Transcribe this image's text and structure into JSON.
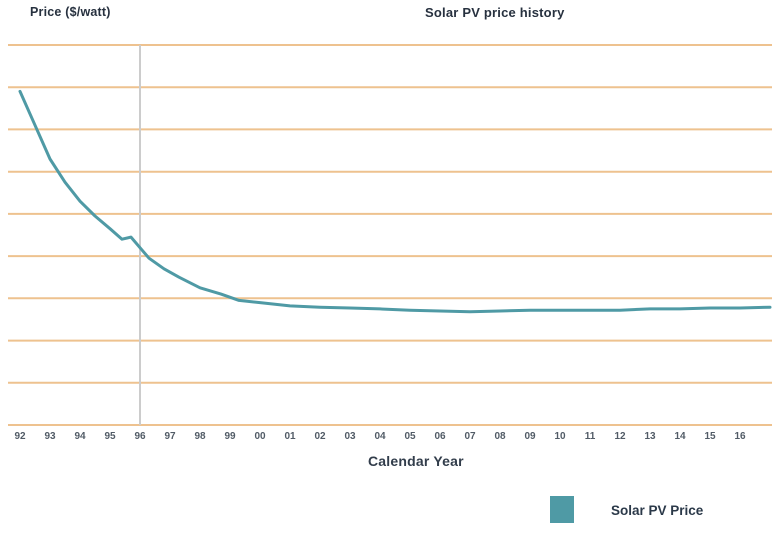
{
  "header": {
    "y_axis_title": "Price ($/watt)",
    "title": "Solar PV price history"
  },
  "x_axis": {
    "label": "Calendar Year"
  },
  "legend": {
    "label": "Solar PV Price",
    "swatch_color": "#4f9aa5"
  },
  "colors": {
    "line": "#4f9aa5",
    "grid": "#eec28f",
    "vline": "#cccccc",
    "title_text": "#27313f",
    "tick_text": "#515b66"
  },
  "chart_data": {
    "type": "line",
    "title": "Solar PV price history",
    "xlabel": "Calendar Year",
    "ylabel": "Price ($/watt)",
    "xlim": [
      1992,
      2017
    ],
    "ylim": [
      0,
      9
    ],
    "grid": "horizontal tan gridlines every 1 unit, no y tick labels",
    "legend_position": "bottom-right",
    "vline_x": 1996,
    "x_tick_labels": [
      "92",
      "93",
      "94",
      "95",
      "96",
      "97",
      "98",
      "99",
      "00",
      "01",
      "02",
      "03",
      "04",
      "05",
      "06",
      "07",
      "08",
      "09",
      "10",
      "11",
      "12",
      "13",
      "14",
      "15",
      "16"
    ],
    "series": [
      {
        "name": "Solar PV Price",
        "x": [
          1992.0,
          1992.5,
          1993.0,
          1993.5,
          1994.0,
          1994.5,
          1995.0,
          1995.4,
          1995.7,
          1996.0,
          1996.3,
          1996.8,
          1997.3,
          1998.0,
          1998.7,
          1999.3,
          2000,
          2001,
          2002,
          2003,
          2004,
          2005,
          2006,
          2007,
          2008,
          2009,
          2010,
          2011,
          2012,
          2013,
          2014,
          2015,
          2016,
          2017
        ],
        "y": [
          7.9,
          7.1,
          6.3,
          5.75,
          5.3,
          4.95,
          4.65,
          4.4,
          4.45,
          4.2,
          3.95,
          3.7,
          3.5,
          3.25,
          3.1,
          2.95,
          2.9,
          2.82,
          2.79,
          2.77,
          2.75,
          2.72,
          2.7,
          2.68,
          2.7,
          2.72,
          2.72,
          2.72,
          2.72,
          2.75,
          2.75,
          2.77,
          2.77,
          2.79
        ]
      }
    ]
  }
}
